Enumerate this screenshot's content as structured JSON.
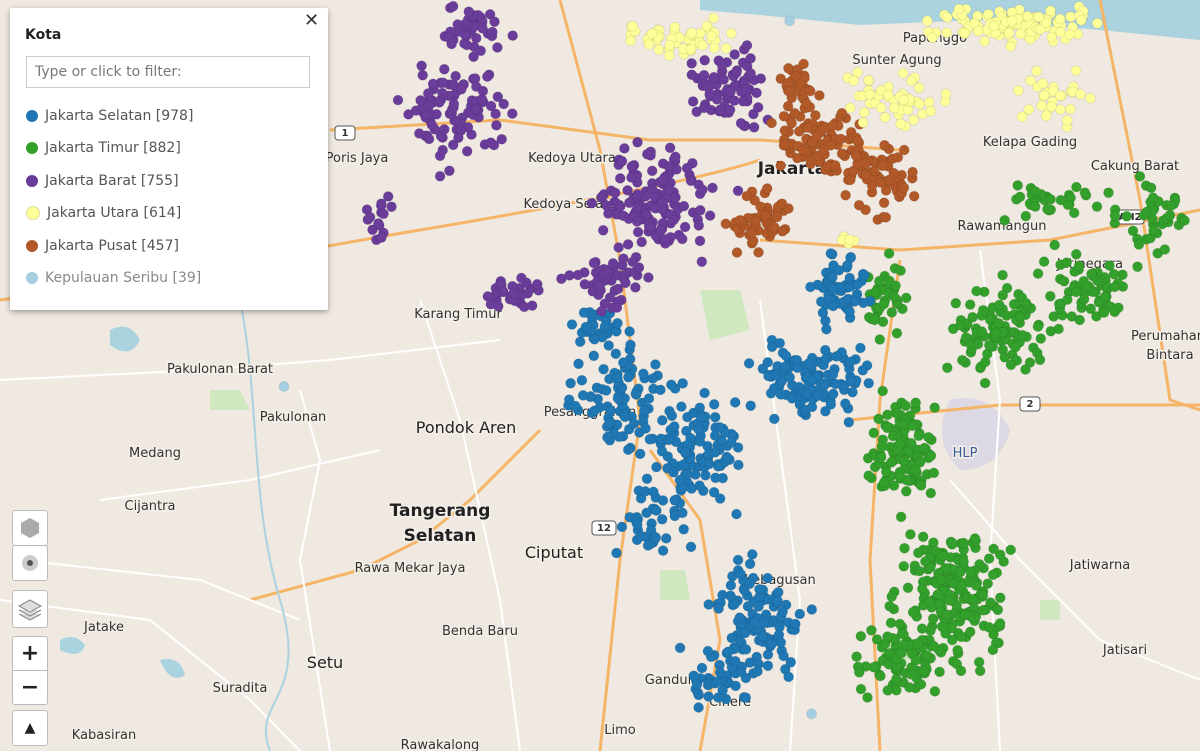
{
  "panel": {
    "title": "Kota",
    "close": "✕",
    "filter_placeholder": "Type or click to filter:",
    "items": [
      {
        "label": "Jakarta Selatan [978]",
        "color": "#1f78b4"
      },
      {
        "label": "Jakarta Timur [882]",
        "color": "#33a02c"
      },
      {
        "label": "Jakarta Barat [755]",
        "color": "#6a3d9a"
      },
      {
        "label": "Jakarta Utara [614]",
        "color": "#ffff99"
      },
      {
        "label": "Jakarta Pusat [457]",
        "color": "#b15928"
      },
      {
        "label": "Kepulauan Seribu [39]",
        "color": "#a6cee3"
      }
    ]
  },
  "map": {
    "labels": [
      "Poris Jaya",
      "Kedoya Utara",
      "Kedoya Selatan",
      "Jakarta",
      "Sunter Agung",
      "Papanggo",
      "Kelapa Gading",
      "Cakung Barat",
      "Rawamangun",
      "Jatinegara",
      "Perumahan",
      "Bintara",
      "Karang Timur",
      "Pakulonan Barat",
      "Pakulonan",
      "Pondok Aren",
      "Pesanggrahan",
      "Medang",
      "Cijantra",
      "Tangerang",
      "Selatan",
      "Ciputat",
      "Rawa Mekar Jaya",
      "Kebagusan",
      "Benda Baru",
      "Jatake",
      "Setu",
      "Suradita",
      "Kabasiran",
      "Rawakalong",
      "Limo",
      "Gandul",
      "Cinere",
      "Jatiwarna",
      "Jatisari",
      "HLP"
    ],
    "shields": [
      "1",
      "12",
      "AH2",
      "2"
    ]
  },
  "controls": {
    "zoom_in": "+",
    "zoom_out": "−",
    "north": "▲"
  }
}
